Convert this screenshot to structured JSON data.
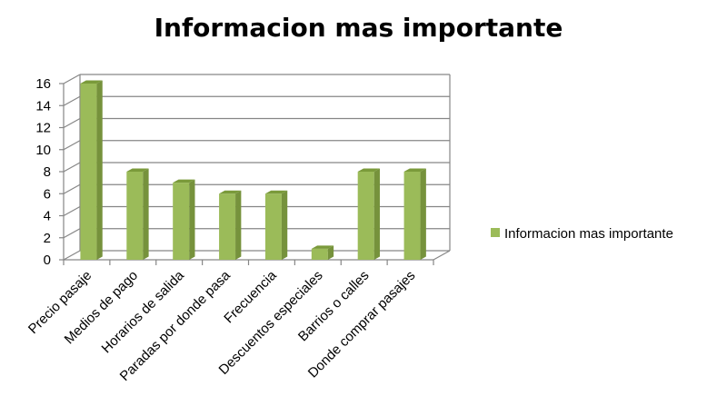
{
  "chart_data": {
    "type": "bar",
    "title": "Informacion mas importante",
    "xlabel": "",
    "ylabel": "",
    "ylim": [
      0,
      16
    ],
    "yticks": [
      0,
      2,
      4,
      6,
      8,
      10,
      12,
      14,
      16
    ],
    "grid": true,
    "legend_position": "right",
    "style": "3d",
    "categories": [
      "Precio pasaje",
      "Medios de pago",
      "Horarios de salida",
      "Paradas por donde pasa",
      "Frecuencia",
      "Descuentos especiales",
      "Barrios o calles",
      "Donde comprar pasajes"
    ],
    "series": [
      {
        "name": "Informacion mas importante",
        "values": [
          16,
          8,
          7,
          6,
          6,
          1,
          8,
          8
        ],
        "color": "#9BBB59",
        "side_color": "#76923C",
        "top_color": "#7A9A3A"
      }
    ]
  }
}
